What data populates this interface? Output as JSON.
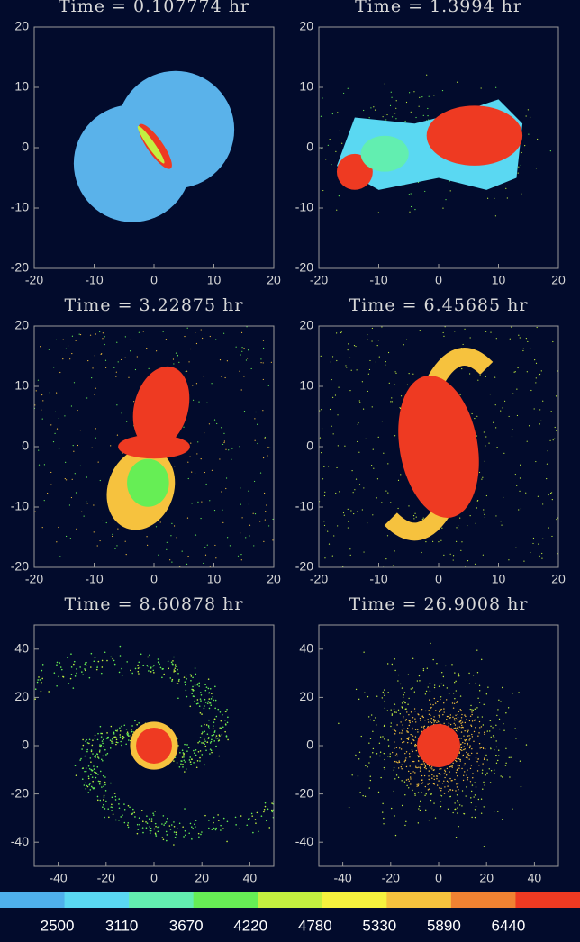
{
  "chart_data": [
    {
      "type": "image",
      "title": "Time = 0.107774 hr",
      "xlim": [
        -20,
        20
      ],
      "ylim": [
        -20,
        20
      ],
      "xticks": [
        -20,
        -10,
        0,
        10,
        20
      ],
      "yticks": [
        -20,
        -10,
        0,
        10,
        20
      ]
    },
    {
      "type": "image",
      "title": "Time = 1.3994 hr",
      "xlim": [
        -20,
        20
      ],
      "ylim": [
        -20,
        20
      ],
      "xticks": [
        -20,
        -10,
        0,
        10,
        20
      ],
      "yticks": [
        -20,
        -10,
        0,
        10,
        20
      ]
    },
    {
      "type": "image",
      "title": "Time = 3.22875 hr",
      "xlim": [
        -20,
        20
      ],
      "ylim": [
        -20,
        20
      ],
      "xticks": [
        -20,
        -10,
        0,
        10,
        20
      ],
      "yticks": [
        -20,
        -10,
        0,
        10,
        20
      ]
    },
    {
      "type": "image",
      "title": "Time = 6.45685 hr",
      "xlim": [
        -20,
        20
      ],
      "ylim": [
        -20,
        20
      ],
      "xticks": [
        -20,
        -10,
        0,
        10,
        20
      ],
      "yticks": [
        -20,
        -10,
        0,
        10,
        20
      ]
    },
    {
      "type": "image",
      "title": "Time = 8.60878 hr",
      "xlim": [
        -50,
        50
      ],
      "ylim": [
        -50,
        50
      ],
      "xticks": [
        -40,
        -20,
        0,
        20,
        40
      ],
      "yticks": [
        -40,
        -20,
        0,
        20,
        40
      ]
    },
    {
      "type": "image",
      "title": "Time = 26.9008 hr",
      "xlim": [
        -50,
        50
      ],
      "ylim": [
        -50,
        50
      ],
      "xticks": [
        -40,
        -20,
        0,
        20,
        40
      ],
      "yticks": [
        -40,
        -20,
        0,
        20,
        40
      ]
    }
  ],
  "colorbar": {
    "ticks": [
      2500,
      3110,
      3670,
      4220,
      4780,
      5330,
      5890,
      6440
    ],
    "colors": [
      "#4fb0ec",
      "#5ad8f2",
      "#62eeb0",
      "#66ee55",
      "#c4f040",
      "#f6f23e",
      "#f6c23e",
      "#f08232",
      "#ee3a22"
    ]
  }
}
